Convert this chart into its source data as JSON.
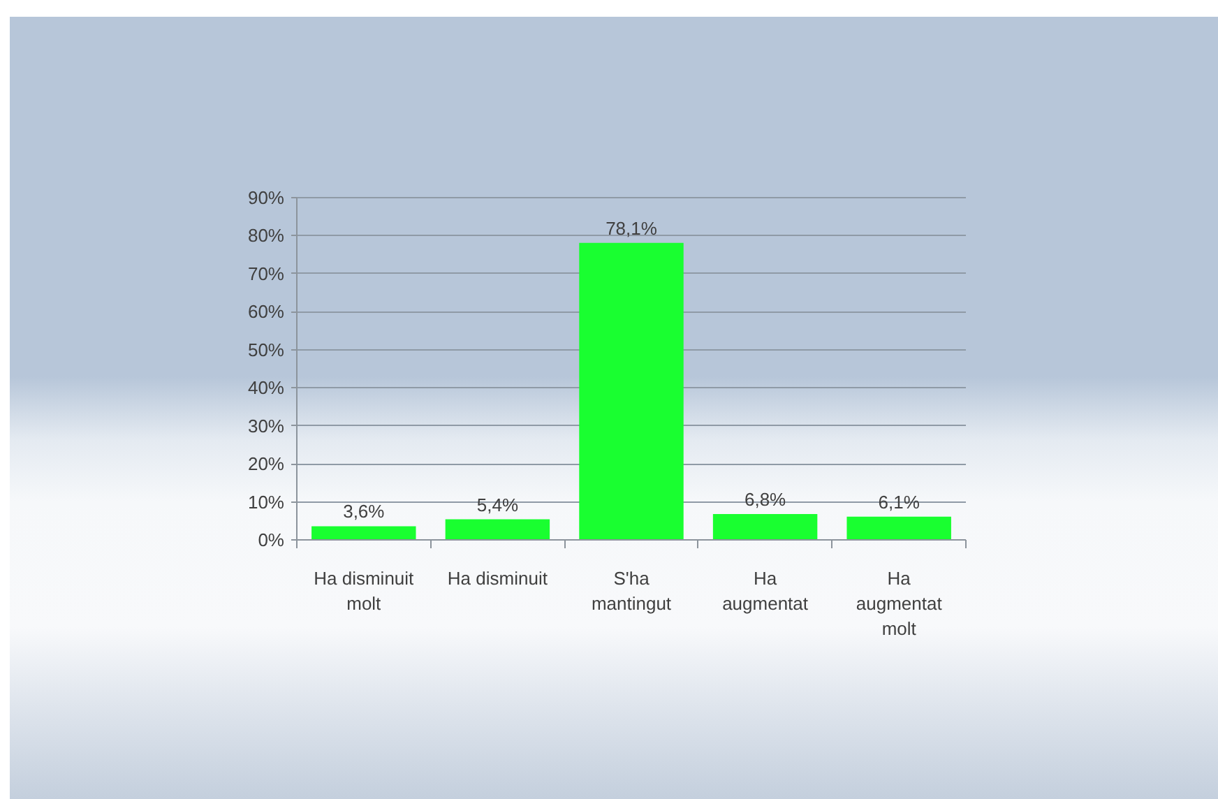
{
  "chart_data": {
    "type": "bar",
    "categories": [
      "Ha disminuit molt",
      "Ha disminuit",
      "S'ha mantingut",
      "Ha augmentat",
      "Ha augmentat molt"
    ],
    "values": [
      3.6,
      5.4,
      78.1,
      6.8,
      6.1
    ],
    "value_labels": [
      "3,6%",
      "5,4%",
      "78,1%",
      "6,8%",
      "6,1%"
    ],
    "color": "#19ff30",
    "ylim": [
      0,
      90
    ],
    "yticks": [
      {
        "value": 0,
        "label": "0%"
      },
      {
        "value": 10,
        "label": "10%"
      },
      {
        "value": 20,
        "label": "20%"
      },
      {
        "value": 30,
        "label": "30%"
      },
      {
        "value": 40,
        "label": "40%"
      },
      {
        "value": 50,
        "label": "50%"
      },
      {
        "value": 60,
        "label": "60%"
      },
      {
        "value": 70,
        "label": "70%"
      },
      {
        "value": 80,
        "label": "80%"
      },
      {
        "value": 90,
        "label": "90%"
      }
    ],
    "grid": "y"
  }
}
